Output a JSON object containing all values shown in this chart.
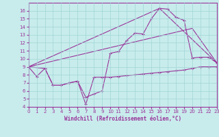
{
  "xlabel": "Windchill (Refroidissement éolien,°C)",
  "xlim": [
    0,
    23
  ],
  "ylim": [
    4,
    17
  ],
  "xticks": [
    0,
    1,
    2,
    3,
    4,
    5,
    6,
    7,
    8,
    9,
    10,
    11,
    12,
    13,
    14,
    15,
    16,
    17,
    18,
    19,
    20,
    21,
    22,
    23
  ],
  "yticks": [
    4,
    5,
    6,
    7,
    8,
    9,
    10,
    11,
    12,
    13,
    14,
    15,
    16
  ],
  "background_color": "#c8ecec",
  "grid_color": "#a0d4d4",
  "line_color": "#993399",
  "line1_x": [
    0,
    1,
    2,
    3,
    4,
    5,
    6,
    6,
    7,
    8,
    9,
    10,
    11,
    12,
    13,
    14,
    15,
    16,
    17,
    18,
    19,
    20,
    21,
    22,
    23
  ],
  "line1_y": [
    9.0,
    7.8,
    8.8,
    6.7,
    6.7,
    7.0,
    7.2,
    7.2,
    4.3,
    7.7,
    7.7,
    7.7,
    7.8,
    7.9,
    8.0,
    8.1,
    8.2,
    8.3,
    8.4,
    8.5,
    8.6,
    8.8,
    9.0,
    9.0,
    9.0
  ],
  "line2_x": [
    0,
    2,
    3,
    4,
    5,
    6,
    7,
    8,
    9,
    10,
    11,
    12,
    13,
    14,
    15,
    16,
    17,
    18,
    19,
    20,
    21,
    22,
    23
  ],
  "line2_y": [
    9.0,
    8.8,
    6.7,
    6.7,
    7.0,
    7.2,
    5.2,
    5.6,
    6.0,
    10.7,
    10.9,
    12.3,
    13.2,
    13.1,
    15.0,
    16.3,
    16.2,
    15.2,
    14.8,
    10.1,
    10.2,
    10.2,
    9.5
  ],
  "line4_x": [
    0,
    20,
    23
  ],
  "line4_y": [
    9.0,
    13.8,
    9.5
  ]
}
